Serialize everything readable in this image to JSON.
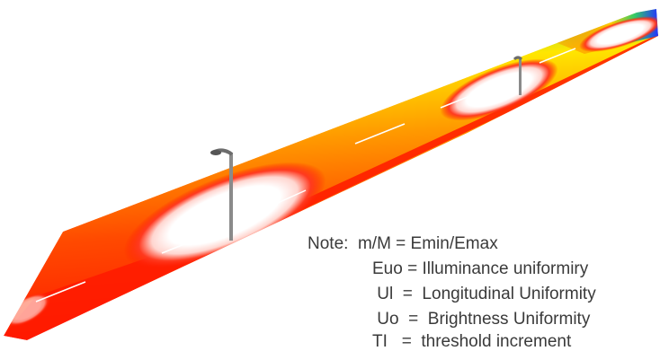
{
  "colors": {
    "background": "#ffffff",
    "note_text": "#3a3a3a",
    "contour_inner": "#ffffff",
    "contour_red": "#ff1a00",
    "contour_orange": "#ff8c00",
    "contour_yellow": "#ffe600",
    "contour_green": "#2ecc2e",
    "contour_blue": "#2233ff",
    "pole": "#8a8a8a"
  },
  "icons": [
    "street-light-pole-icon"
  ],
  "note": {
    "label": "Note:",
    "lines": [
      "Note:  m/M = Emin/Emax",
      "Euo = Illuminance uniformiry",
      " Ul  =  Longitudinal Uniformity",
      " Uo  =  Brightness Uniformity",
      "TI   =  threshold increment"
    ]
  }
}
